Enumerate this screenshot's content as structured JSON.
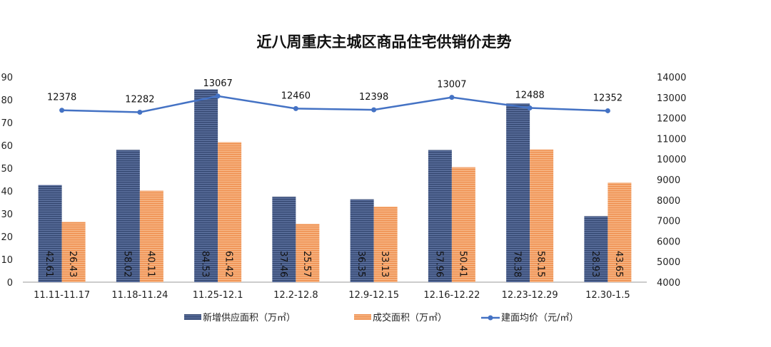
{
  "chart_data": {
    "type": "bar+line",
    "title": "近八周重庆主城区商品住宅供销价走势",
    "categories": [
      "11.11-11.17",
      "11.18-11.24",
      "11.25-12.1",
      "12.2-12.8",
      "12.9-12.15",
      "12.16-12.22",
      "12.23-12.29",
      "12.30-1.5"
    ],
    "series": [
      {
        "name": "新增供应面积（万㎡）",
        "type": "bar",
        "axis": "left",
        "color": "#4a5f8c",
        "values": [
          42.61,
          58.02,
          84.53,
          37.46,
          36.35,
          57.96,
          78.38,
          28.93
        ]
      },
      {
        "name": "成交面积（万㎡）",
        "type": "bar",
        "axis": "left",
        "color": "#f4a36a",
        "values": [
          26.43,
          40.11,
          61.42,
          25.57,
          33.13,
          50.41,
          58.15,
          43.65
        ]
      },
      {
        "name": "建面均价（元/㎡）",
        "type": "line",
        "axis": "right",
        "color": "#4472c4",
        "values": [
          12378,
          12282,
          13067,
          12460,
          12398,
          13007,
          12488,
          12352
        ]
      }
    ],
    "yleft": {
      "min": 0,
      "max": 90,
      "ticks": [
        0,
        10,
        20,
        30,
        40,
        50,
        60,
        70,
        80,
        90
      ]
    },
    "yright": {
      "min": 4000,
      "max": 14000,
      "ticks": [
        4000,
        5000,
        6000,
        7000,
        8000,
        9000,
        10000,
        11000,
        12000,
        13000,
        14000
      ]
    },
    "grid": false,
    "legend": "bottom"
  }
}
